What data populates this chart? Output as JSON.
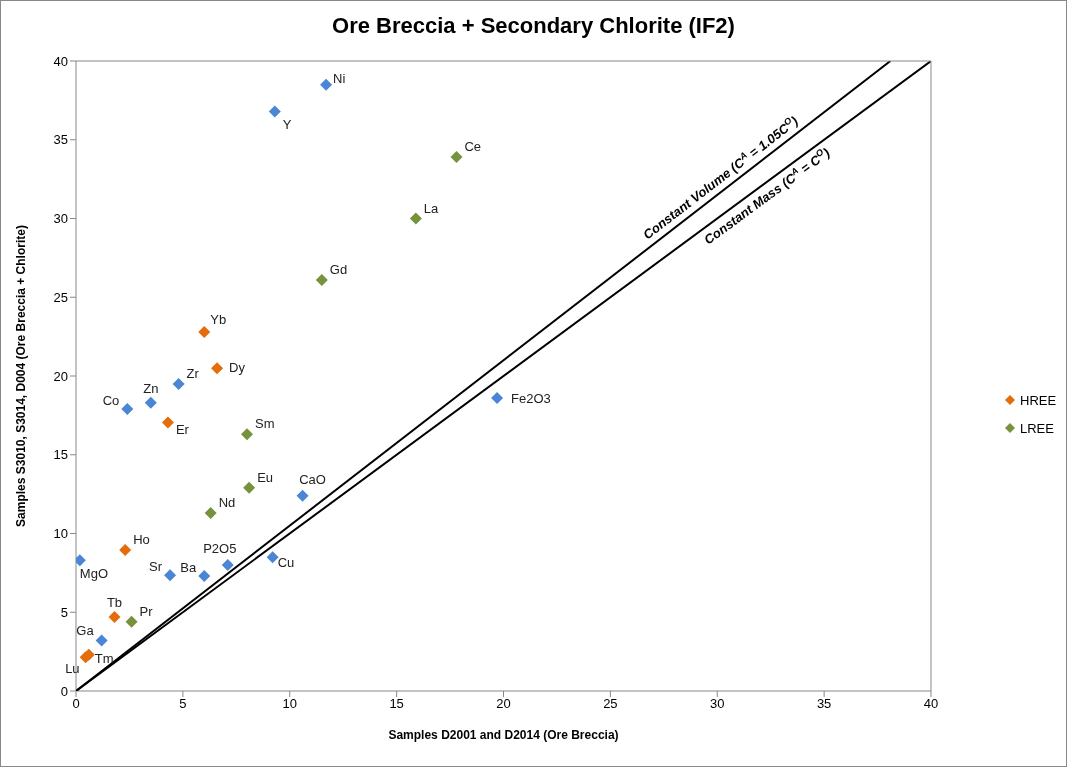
{
  "chart_data": {
    "type": "scatter",
    "title": "Ore Breccia + Secondary Chlorite (IF2)",
    "xlabel": "Samples D2001 and D2014 (Ore Breccia)",
    "ylabel": "Samples S3010, S3014, D004 (Ore Breccia + Chlorite)",
    "xlim": [
      0,
      40
    ],
    "xticks": [
      0,
      5,
      10,
      15,
      20,
      25,
      30,
      35,
      40
    ],
    "ylim": [
      0,
      40
    ],
    "yticks": [
      0,
      5,
      10,
      15,
      20,
      25,
      30,
      35,
      40
    ],
    "grid": false,
    "legend": "right",
    "marker": "diamond",
    "series": [
      {
        "color": "#4a86d4",
        "x": [
          0.18,
          1.2,
          2.4,
          3.5,
          4.8,
          4.4,
          6.0,
          7.1,
          9.3,
          11.7,
          9.2,
          10.6,
          19.7
        ],
        "values": [
          8.3,
          3.2,
          17.9,
          18.3,
          19.5,
          7.35,
          7.3,
          8.0,
          36.8,
          38.5,
          8.5,
          12.4,
          18.6
        ],
        "value_labels": [
          "MgO",
          "Ga",
          "Co",
          "Zn",
          "Zr",
          "Sr",
          "Ba",
          "P2O5",
          "Y",
          "Ni",
          "Cu",
          "CaO",
          "Fe2O3"
        ]
      },
      {
        "name": "HREE",
        "color": "#e46c0a",
        "x": [
          0.45,
          0.6,
          1.8,
          2.3,
          4.3,
          6.0,
          6.6
        ],
        "values": [
          2.15,
          2.3,
          4.7,
          8.95,
          17.05,
          22.8,
          20.5
        ],
        "value_labels": [
          "Lu",
          "Tm",
          "Tb",
          "Ho",
          "Er",
          "Yb",
          "Dy"
        ]
      },
      {
        "name": "LREE",
        "color": "#76923c",
        "x": [
          2.6,
          6.3,
          8.1,
          8.0,
          11.5,
          15.9,
          17.8
        ],
        "values": [
          4.4,
          11.3,
          12.9,
          16.3,
          26.1,
          30.0,
          33.9
        ],
        "value_labels": [
          "Pr",
          "Nd",
          "Eu",
          "Sm",
          "Gd",
          "La",
          "Ce"
        ]
      },
      {
        "type": "line",
        "name": "Constant Volume  (C$^{A}$ = 1.05C$^{O}$)",
        "color": "#000000",
        "marker": "none",
        "x": [
          0,
          38.1
        ],
        "values": [
          0,
          40
        ]
      },
      {
        "type": "line",
        "name": "Constant Mass (C$^{A}$ = C$^{O}$)",
        "color": "#000000",
        "marker": "none",
        "x": [
          0,
          40
        ],
        "values": [
          0,
          40
        ]
      }
    ]
  }
}
